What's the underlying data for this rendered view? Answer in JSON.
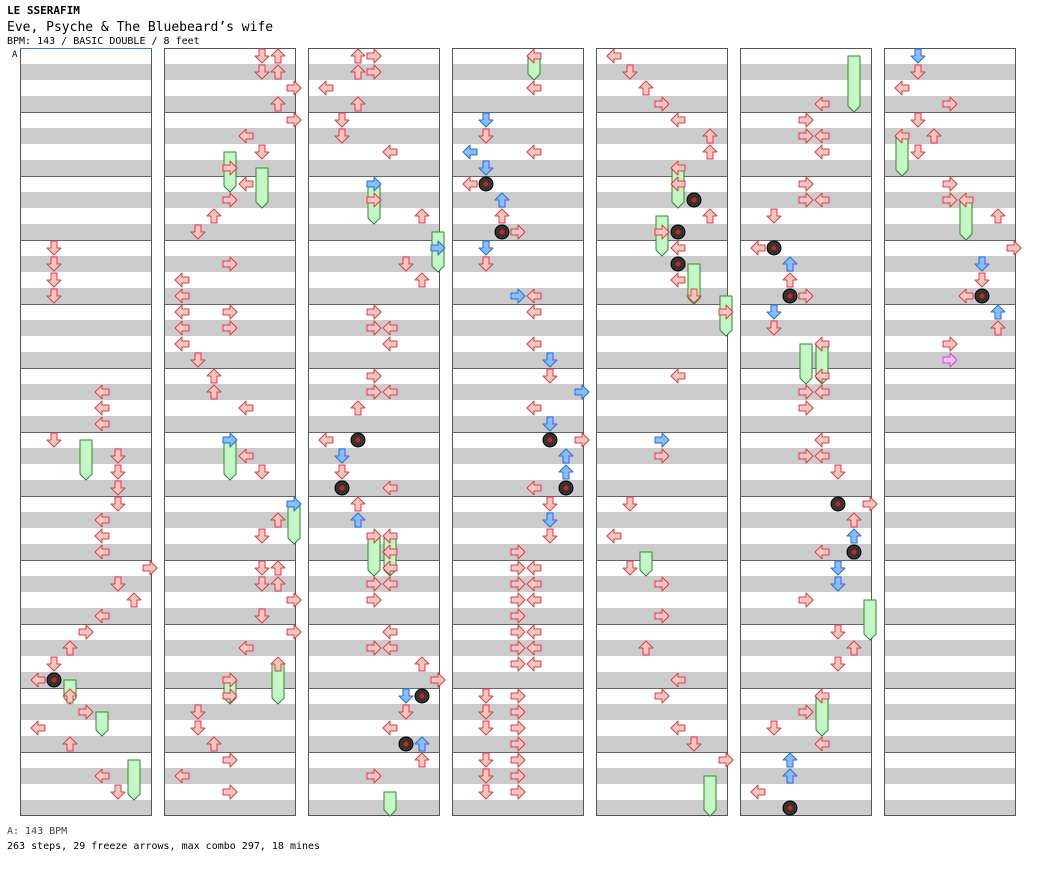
{
  "header": {
    "artist": "LE SSERAFIM",
    "title": "Eve, Psyche & The Bluebeard’s wife",
    "info": "BPM: 143 / BASIC DOUBLE / 8 feet"
  },
  "bpm_marker": "A",
  "footer": {
    "bpm_line": "A: 143 BPM",
    "stats_line": "263 steps, 29 freeze arrows, max combo 297, 18 mines"
  },
  "colors": {
    "stripe": "#cccccc",
    "red_fill": "#ffc4c4",
    "red_stroke": "#d04040",
    "blue_fill": "#88c0ff",
    "blue_stroke": "#2a6ad0",
    "pink_fill": "#ffbdff",
    "pink_stroke": "#c050c0",
    "freeze_fill": "#c6f5c6",
    "freeze_stroke": "#2a8a2a",
    "mine": "#333333",
    "mine_core": "#cc2222"
  },
  "lane_order": [
    "L",
    "D",
    "U",
    "R",
    "L",
    "D",
    "U",
    "R"
  ],
  "panels": [
    [
      [
        12,
        1,
        "r"
      ],
      [
        13,
        1,
        "r"
      ],
      [
        14,
        1,
        "r"
      ],
      [
        15,
        1,
        "r"
      ],
      [
        21,
        4,
        "r"
      ],
      [
        22,
        4,
        "r"
      ],
      [
        23,
        4,
        "r"
      ],
      [
        24,
        1,
        "r"
      ],
      [
        25,
        5,
        "r"
      ],
      [
        26,
        5,
        "r"
      ],
      [
        27,
        5,
        "r"
      ],
      [
        28,
        5,
        "r"
      ],
      [
        29,
        4,
        "r"
      ],
      [
        30,
        4,
        "r"
      ],
      [
        31,
        4,
        "r"
      ],
      [
        32,
        7,
        "r"
      ],
      [
        33,
        5,
        "r"
      ],
      [
        34,
        6,
        "r"
      ],
      [
        35,
        4,
        "r"
      ],
      [
        36,
        3,
        "r"
      ],
      [
        37,
        2,
        "r"
      ],
      [
        38,
        1,
        "r"
      ],
      [
        39,
        0,
        "r"
      ],
      [
        39,
        1,
        "r"
      ],
      [
        40,
        2,
        "r"
      ],
      [
        41,
        3,
        "r"
      ],
      [
        42,
        0,
        "r"
      ],
      [
        43,
        2,
        "r"
      ],
      [
        45,
        4,
        "r"
      ],
      [
        46,
        5,
        "r"
      ]
    ],
    [
      [
        0,
        5,
        "r"
      ],
      [
        0,
        6,
        "r"
      ],
      [
        1,
        5,
        "r"
      ],
      [
        1,
        6,
        "r"
      ],
      [
        2,
        7,
        "r"
      ],
      [
        3,
        6,
        "r"
      ],
      [
        4,
        7,
        "r"
      ],
      [
        5,
        4,
        "r"
      ],
      [
        6,
        5,
        "r"
      ],
      [
        7,
        3,
        "r"
      ],
      [
        8,
        4,
        "r"
      ],
      [
        9,
        3,
        "r"
      ],
      [
        10,
        2,
        "r"
      ],
      [
        11,
        1,
        "r"
      ],
      [
        13,
        3,
        "r"
      ],
      [
        14,
        0,
        "r"
      ],
      [
        15,
        0,
        "r"
      ],
      [
        16,
        0,
        "r"
      ],
      [
        16,
        3,
        "r"
      ],
      [
        17,
        0,
        "r"
      ],
      [
        17,
        3,
        "r"
      ],
      [
        18,
        0,
        "r"
      ],
      [
        19,
        1,
        "r"
      ],
      [
        20,
        2,
        "r"
      ],
      [
        21,
        2,
        "r"
      ],
      [
        22,
        4,
        "r"
      ],
      [
        24,
        3,
        "b"
      ],
      [
        25,
        4,
        "r"
      ],
      [
        26,
        5,
        "r"
      ],
      [
        28,
        7,
        "b"
      ],
      [
        29,
        6,
        "r"
      ],
      [
        30,
        5,
        "r"
      ],
      [
        32,
        5,
        "r"
      ],
      [
        32,
        6,
        "r"
      ],
      [
        33,
        5,
        "r"
      ],
      [
        33,
        6,
        "r"
      ],
      [
        34,
        7,
        "r"
      ],
      [
        35,
        5,
        "r"
      ],
      [
        36,
        7,
        "r"
      ],
      [
        37,
        4,
        "r"
      ],
      [
        38,
        6,
        "r"
      ],
      [
        39,
        3,
        "r"
      ],
      [
        40,
        3,
        "r"
      ],
      [
        41,
        1,
        "r"
      ],
      [
        42,
        1,
        "r"
      ],
      [
        43,
        2,
        "r"
      ],
      [
        44,
        3,
        "r"
      ],
      [
        45,
        0,
        "r"
      ],
      [
        46,
        3,
        "r"
      ]
    ],
    [
      [
        0,
        2,
        "r"
      ],
      [
        0,
        3,
        "r"
      ],
      [
        1,
        2,
        "r"
      ],
      [
        1,
        3,
        "r"
      ],
      [
        2,
        0,
        "r"
      ],
      [
        3,
        2,
        "r"
      ],
      [
        4,
        1,
        "r"
      ],
      [
        5,
        1,
        "r"
      ],
      [
        6,
        4,
        "r"
      ],
      [
        8,
        3,
        "b"
      ],
      [
        9,
        3,
        "r"
      ],
      [
        10,
        6,
        "r"
      ],
      [
        12,
        7,
        "b"
      ],
      [
        13,
        5,
        "r"
      ],
      [
        14,
        6,
        "r"
      ],
      [
        16,
        3,
        "r"
      ],
      [
        17,
        3,
        "r"
      ],
      [
        17,
        4,
        "r"
      ],
      [
        18,
        4,
        "r"
      ],
      [
        20,
        3,
        "r"
      ],
      [
        21,
        3,
        "r"
      ],
      [
        21,
        4,
        "r"
      ],
      [
        22,
        2,
        "r"
      ],
      [
        24,
        0,
        "r"
      ],
      [
        25,
        1,
        "b"
      ],
      [
        26,
        1,
        "r"
      ],
      [
        27,
        1,
        "r"
      ],
      [
        27,
        4,
        "r"
      ],
      [
        28,
        2,
        "r"
      ],
      [
        29,
        2,
        "b"
      ],
      [
        30,
        3,
        "r"
      ],
      [
        30,
        4,
        "r"
      ],
      [
        31,
        4,
        "r"
      ],
      [
        32,
        4,
        "r"
      ],
      [
        33,
        3,
        "r"
      ],
      [
        33,
        4,
        "r"
      ],
      [
        34,
        3,
        "r"
      ],
      [
        36,
        4,
        "r"
      ],
      [
        37,
        3,
        "r"
      ],
      [
        37,
        4,
        "r"
      ],
      [
        38,
        6,
        "r"
      ],
      [
        39,
        7,
        "r"
      ],
      [
        40,
        5,
        "b"
      ],
      [
        41,
        5,
        "r"
      ],
      [
        42,
        4,
        "r"
      ],
      [
        43,
        6,
        "b"
      ],
      [
        44,
        6,
        "r"
      ],
      [
        45,
        3,
        "r"
      ]
    ],
    [
      [
        0,
        4,
        "r"
      ],
      [
        2,
        4,
        "r"
      ],
      [
        4,
        1,
        "b"
      ],
      [
        5,
        1,
        "r"
      ],
      [
        6,
        0,
        "b"
      ],
      [
        7,
        1,
        "b"
      ],
      [
        6,
        4,
        "r"
      ],
      [
        8,
        0,
        "r"
      ],
      [
        9,
        2,
        "b"
      ],
      [
        10,
        2,
        "r"
      ],
      [
        11,
        3,
        "r"
      ],
      [
        12,
        1,
        "b"
      ],
      [
        13,
        1,
        "r"
      ],
      [
        15,
        3,
        "b"
      ],
      [
        15,
        4,
        "r"
      ],
      [
        16,
        4,
        "r"
      ],
      [
        18,
        4,
        "r"
      ],
      [
        19,
        5,
        "b"
      ],
      [
        20,
        5,
        "r"
      ],
      [
        21,
        7,
        "b"
      ],
      [
        22,
        4,
        "r"
      ],
      [
        23,
        5,
        "b"
      ],
      [
        24,
        7,
        "r"
      ],
      [
        25,
        6,
        "b"
      ],
      [
        26,
        6,
        "b"
      ],
      [
        27,
        4,
        "r"
      ],
      [
        28,
        5,
        "r"
      ],
      [
        29,
        5,
        "b"
      ],
      [
        30,
        5,
        "r"
      ],
      [
        31,
        3,
        "r"
      ],
      [
        32,
        3,
        "r"
      ],
      [
        32,
        4,
        "r"
      ],
      [
        33,
        3,
        "r"
      ],
      [
        33,
        4,
        "r"
      ],
      [
        34,
        3,
        "r"
      ],
      [
        34,
        4,
        "r"
      ],
      [
        35,
        3,
        "r"
      ],
      [
        36,
        3,
        "r"
      ],
      [
        36,
        4,
        "r"
      ],
      [
        37,
        3,
        "r"
      ],
      [
        37,
        4,
        "r"
      ],
      [
        38,
        3,
        "r"
      ],
      [
        38,
        4,
        "r"
      ],
      [
        40,
        1,
        "r"
      ],
      [
        40,
        3,
        "r"
      ],
      [
        41,
        1,
        "r"
      ],
      [
        41,
        3,
        "r"
      ],
      [
        42,
        1,
        "r"
      ],
      [
        42,
        3,
        "r"
      ],
      [
        43,
        3,
        "r"
      ],
      [
        44,
        1,
        "r"
      ],
      [
        44,
        3,
        "r"
      ],
      [
        45,
        1,
        "r"
      ],
      [
        45,
        3,
        "r"
      ],
      [
        46,
        1,
        "r"
      ],
      [
        46,
        3,
        "r"
      ]
    ],
    [
      [
        0,
        0,
        "r"
      ],
      [
        1,
        1,
        "r"
      ],
      [
        2,
        2,
        "r"
      ],
      [
        3,
        3,
        "r"
      ],
      [
        4,
        4,
        "r"
      ],
      [
        5,
        6,
        "r"
      ],
      [
        6,
        6,
        "r"
      ],
      [
        7,
        4,
        "r"
      ],
      [
        8,
        4,
        "r"
      ],
      [
        9,
        5,
        "r"
      ],
      [
        10,
        6,
        "r"
      ],
      [
        11,
        3,
        "r"
      ],
      [
        12,
        4,
        "r"
      ],
      [
        13,
        4,
        "r"
      ],
      [
        14,
        4,
        "r"
      ],
      [
        15,
        5,
        "r"
      ],
      [
        16,
        7,
        "r"
      ],
      [
        20,
        4,
        "r"
      ],
      [
        24,
        3,
        "b"
      ],
      [
        25,
        3,
        "r"
      ],
      [
        28,
        1,
        "r"
      ],
      [
        30,
        0,
        "r"
      ],
      [
        32,
        1,
        "r"
      ],
      [
        33,
        3,
        "r"
      ],
      [
        35,
        3,
        "r"
      ],
      [
        37,
        2,
        "r"
      ],
      [
        39,
        4,
        "r"
      ],
      [
        40,
        3,
        "r"
      ],
      [
        42,
        4,
        "r"
      ],
      [
        43,
        5,
        "r"
      ],
      [
        44,
        7,
        "r"
      ]
    ],
    [
      [
        3,
        4,
        "r"
      ],
      [
        4,
        3,
        "r"
      ],
      [
        5,
        3,
        "r"
      ],
      [
        5,
        4,
        "r"
      ],
      [
        6,
        4,
        "r"
      ],
      [
        8,
        3,
        "r"
      ],
      [
        9,
        3,
        "r"
      ],
      [
        9,
        4,
        "r"
      ],
      [
        10,
        1,
        "r"
      ],
      [
        12,
        0,
        "r"
      ],
      [
        13,
        2,
        "b"
      ],
      [
        14,
        2,
        "r"
      ],
      [
        15,
        3,
        "r"
      ],
      [
        16,
        1,
        "b"
      ],
      [
        17,
        1,
        "r"
      ],
      [
        18,
        4,
        "r"
      ],
      [
        20,
        4,
        "r"
      ],
      [
        21,
        3,
        "r"
      ],
      [
        21,
        4,
        "r"
      ],
      [
        22,
        3,
        "r"
      ],
      [
        24,
        4,
        "r"
      ],
      [
        25,
        3,
        "r"
      ],
      [
        25,
        4,
        "r"
      ],
      [
        26,
        5,
        "r"
      ],
      [
        28,
        7,
        "r"
      ],
      [
        29,
        6,
        "r"
      ],
      [
        30,
        6,
        "b"
      ],
      [
        31,
        6,
        "r"
      ],
      [
        31,
        4,
        "r"
      ],
      [
        32,
        5,
        "b"
      ],
      [
        33,
        5,
        "b"
      ],
      [
        34,
        3,
        "r"
      ],
      [
        36,
        5,
        "r"
      ],
      [
        37,
        6,
        "r"
      ],
      [
        38,
        5,
        "r"
      ],
      [
        40,
        4,
        "r"
      ],
      [
        41,
        3,
        "r"
      ],
      [
        42,
        1,
        "r"
      ],
      [
        43,
        4,
        "r"
      ],
      [
        44,
        2,
        "b"
      ],
      [
        45,
        2,
        "b"
      ],
      [
        46,
        0,
        "r"
      ]
    ],
    [
      [
        0,
        1,
        "b"
      ],
      [
        1,
        1,
        "r"
      ],
      [
        2,
        0,
        "r"
      ],
      [
        3,
        3,
        "r"
      ],
      [
        4,
        1,
        "r"
      ],
      [
        5,
        0,
        "r"
      ],
      [
        5,
        2,
        "r"
      ],
      [
        6,
        1,
        "r"
      ],
      [
        8,
        3,
        "r"
      ],
      [
        9,
        3,
        "r"
      ],
      [
        9,
        4,
        "r"
      ],
      [
        10,
        6,
        "r"
      ],
      [
        12,
        7,
        "r"
      ],
      [
        13,
        5,
        "b"
      ],
      [
        14,
        5,
        "r"
      ],
      [
        15,
        4,
        "r"
      ],
      [
        16,
        6,
        "b"
      ],
      [
        17,
        6,
        "r"
      ],
      [
        18,
        3,
        "r"
      ],
      [
        19,
        3,
        "p"
      ]
    ]
  ],
  "freezes": [
    [
      [
        24,
        26,
        3
      ],
      [
        39,
        40,
        2
      ],
      [
        41,
        42,
        4
      ],
      [
        44,
        46,
        6
      ]
    ],
    [
      [
        6,
        8,
        3
      ],
      [
        7,
        9,
        5
      ],
      [
        24,
        26,
        3
      ],
      [
        28,
        30,
        7
      ],
      [
        38,
        40,
        6
      ],
      [
        39,
        40,
        3
      ]
    ],
    [
      [
        8,
        10,
        3
      ],
      [
        11,
        13,
        7
      ],
      [
        30,
        32,
        3
      ],
      [
        30,
        32,
        4
      ],
      [
        46,
        47,
        4
      ]
    ],
    [
      [
        0,
        1,
        4
      ]
    ],
    [
      [
        7,
        9,
        4
      ],
      [
        10,
        12,
        3
      ],
      [
        13,
        15,
        5
      ],
      [
        15,
        17,
        7
      ],
      [
        31,
        32,
        2
      ],
      [
        45,
        47,
        6
      ]
    ],
    [
      [
        0,
        3,
        6
      ],
      [
        18,
        20,
        3
      ],
      [
        18,
        20,
        4
      ],
      [
        34,
        36,
        7
      ],
      [
        40,
        42,
        4
      ]
    ],
    [
      [
        5,
        7,
        0
      ],
      [
        9,
        11,
        4
      ]
    ]
  ],
  "mines": [
    [
      [
        39,
        1
      ]
    ],
    [],
    [
      [
        24,
        2
      ],
      [
        27,
        1
      ],
      [
        40,
        6
      ],
      [
        43,
        5
      ]
    ],
    [
      [
        8,
        1
      ],
      [
        11,
        2
      ],
      [
        24,
        5
      ],
      [
        27,
        6
      ]
    ],
    [
      [
        9,
        5
      ],
      [
        11,
        4
      ],
      [
        13,
        4
      ]
    ],
    [
      [
        12,
        1
      ],
      [
        15,
        2
      ],
      [
        28,
        5
      ],
      [
        31,
        6
      ],
      [
        47,
        2
      ]
    ],
    [
      [
        15,
        5
      ]
    ]
  ]
}
